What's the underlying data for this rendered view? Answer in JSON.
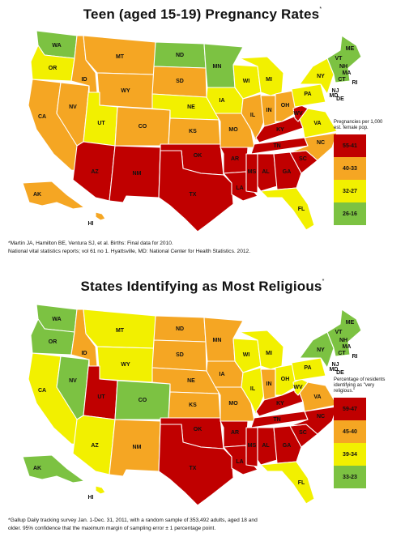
{
  "top": {
    "title": "Teen (aged 15-19) Pregnancy Rates",
    "title_mark": "*",
    "legend_title": "Pregnancies per 1,000 est. female pop.",
    "legend": [
      {
        "label": "55-41",
        "color": "#c00000"
      },
      {
        "label": "40-33",
        "color": "#f5a623"
      },
      {
        "label": "32-27",
        "color": "#f2f000"
      },
      {
        "label": "26-16",
        "color": "#7cc242"
      }
    ],
    "footnote_1": "*Martin JA, Hamilton BE, Ventura SJ, et al. Births: Final data for 2010.",
    "footnote_2": "National vital statistics reports; vol 61 no 1. Hyattsville, MD: National Center for Health Statistics. 2012.",
    "states": {
      "WA": "c4",
      "OR": "c3",
      "CA": "c2",
      "NV": "c2",
      "ID": "c2",
      "MT": "c2",
      "WY": "c2",
      "UT": "c3",
      "CO": "c2",
      "AZ": "c1",
      "NM": "c1",
      "ND": "c4",
      "SD": "c2",
      "NE": "c3",
      "KS": "c2",
      "OK": "c1",
      "TX": "c1",
      "MN": "c4",
      "IA": "c3",
      "MO": "c2",
      "AR": "c1",
      "LA": "c1",
      "WI": "c3",
      "IL": "c2",
      "MI": "c3",
      "IN": "c2",
      "OH": "c2",
      "KY": "c1",
      "TN": "c1",
      "MS": "c1",
      "AL": "c1",
      "GA": "c1",
      "FL": "c3",
      "SC": "c1",
      "NC": "c2",
      "VA": "c3",
      "WV": "c1",
      "PA": "c3",
      "NY": "c3",
      "ME": "c4",
      "NE_COAST": "c4",
      "AK": "c2",
      "HI": "c2"
    }
  },
  "bottom": {
    "title": "States Identifying as Most Religious",
    "title_mark": "*",
    "legend_title": "Percentage of residents identifying as \"very religious.\"",
    "legend": [
      {
        "label": "59-47",
        "color": "#c00000"
      },
      {
        "label": "45-40",
        "color": "#f5a623"
      },
      {
        "label": "39-34",
        "color": "#f2f000"
      },
      {
        "label": "33-23",
        "color": "#7cc242"
      }
    ],
    "footnote_1": "*Gallup Daily tracking survey Jan. 1-Dec. 31, 2011, with a random sample of 353,492 adults, aged 18 and",
    "footnote_2": "older. 95% confidence that the maximum margin of sampling error ± 1 percentage point.",
    "states": {
      "WA": "c4",
      "OR": "c4",
      "CA": "c3",
      "NV": "c4",
      "ID": "c2",
      "MT": "c3",
      "WY": "c3",
      "UT": "c1",
      "CO": "c4",
      "AZ": "c3",
      "NM": "c2",
      "ND": "c2",
      "SD": "c2",
      "NE": "c2",
      "KS": "c2",
      "OK": "c1",
      "TX": "c1",
      "MN": "c2",
      "IA": "c2",
      "MO": "c2",
      "AR": "c1",
      "LA": "c1",
      "WI": "c3",
      "IL": "c3",
      "MI": "c3",
      "IN": "c2",
      "OH": "c3",
      "KY": "c1",
      "TN": "c1",
      "MS": "c1",
      "AL": "c1",
      "GA": "c1",
      "FL": "c3",
      "SC": "c1",
      "NC": "c1",
      "VA": "c2",
      "WV": "c3",
      "PA": "c3",
      "NY": "c4",
      "ME": "c4",
      "NE_COAST": "c4",
      "AK": "c4",
      "HI": "c3"
    }
  }
}
